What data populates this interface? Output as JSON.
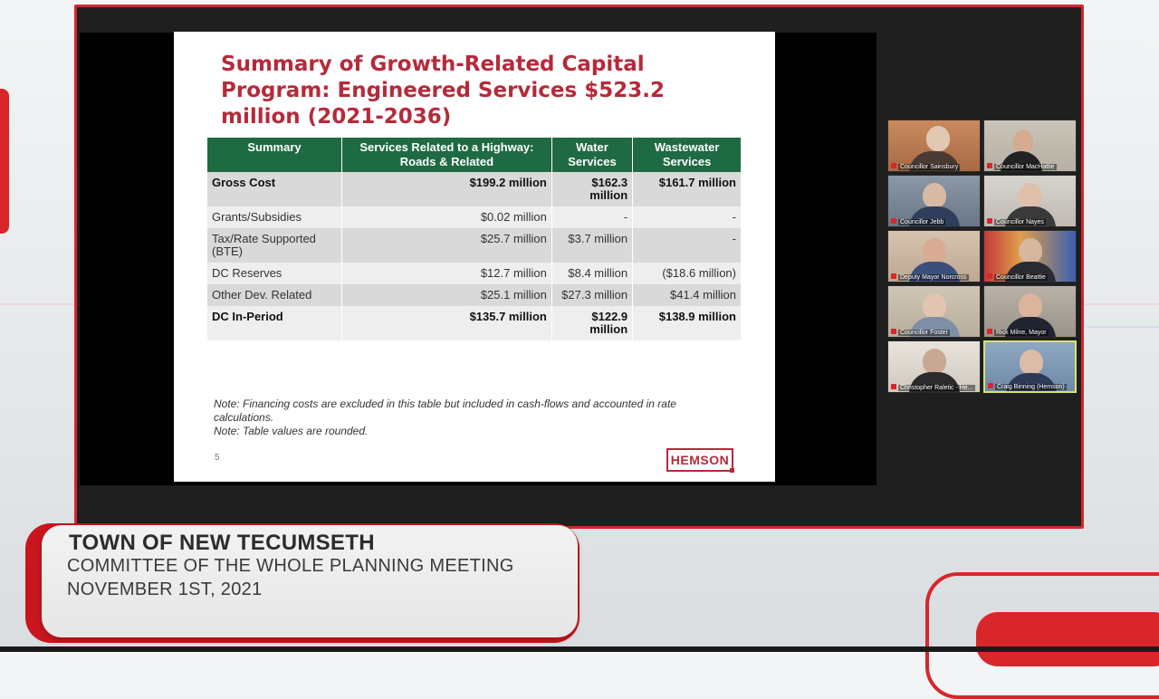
{
  "slide": {
    "title": "Summary of Growth-Related Capital Program: Engineered Services $523.2 million (2021-2036)",
    "table": {
      "headers": [
        "Summary",
        "Services Related to a Highway: Roads & Related",
        "Water Services",
        "Wastewater Services"
      ],
      "rows": [
        {
          "label": "Gross Cost",
          "values": [
            "$199.2 million",
            "$162.3 million",
            "$161.7 million"
          ],
          "bold": true
        },
        {
          "label": "Grants/Subsidies",
          "values": [
            "$0.02 million",
            "-",
            "-"
          ],
          "bold": false
        },
        {
          "label": "Tax/Rate Supported (BTE)",
          "values": [
            "$25.7 million",
            "$3.7 million",
            "-"
          ],
          "bold": false
        },
        {
          "label": "DC Reserves",
          "values": [
            "$12.7 million",
            "$8.4 million",
            "($18.6 million)"
          ],
          "bold": false
        },
        {
          "label": "Other Dev. Related",
          "values": [
            "$25.1 million",
            "$27.3 million",
            "$41.4 million"
          ],
          "bold": false
        },
        {
          "label": "DC In-Period",
          "values": [
            "$135.7 million",
            "$122.9 million",
            "$138.9 million"
          ],
          "bold": true
        }
      ]
    },
    "note1": "Note: Financing costs are excluded in this table but included in cash-flows and accounted in rate calculations.",
    "note2": "Note: Table values are rounded.",
    "page_number": "5",
    "logo_text": "HEMSON"
  },
  "participants": [
    {
      "name": "Councillor Sainsbury"
    },
    {
      "name": "Councillor MacHattie"
    },
    {
      "name": "Councillor Jebb"
    },
    {
      "name": "Councillor Nayes"
    },
    {
      "name": "Deputy Mayor Norcross"
    },
    {
      "name": "Councillor Beattie"
    },
    {
      "name": "Councillor Foster"
    },
    {
      "name": "Rick Milne, Mayor"
    },
    {
      "name": "Christopher Raletic - He..."
    },
    {
      "name": "Craig Binning (Hemson)"
    }
  ],
  "banner": {
    "line1": "TOWN OF NEW TECUMSETH",
    "line2": "COMMITTEE OF THE WHOLE PLANNING MEETING",
    "line3": "NOVEMBER 1ST, 2021"
  },
  "colors": {
    "accent_red": "#d8262b",
    "slide_title": "#b52a3a",
    "table_header": "#1e6a42"
  }
}
